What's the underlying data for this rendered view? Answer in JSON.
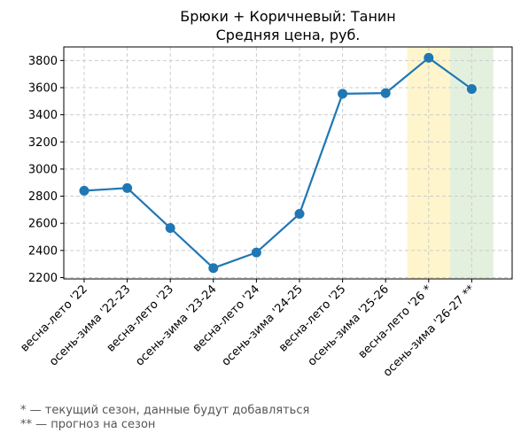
{
  "chart_data": {
    "type": "line",
    "title": "Брюки + Коричневый: Танин",
    "subtitle": "Средняя цена, руб.",
    "categories": [
      "весна-лето '22",
      "осень-зима '22-23",
      "весна-лето '23",
      "осень-зима '23-24",
      "весна-лето '24",
      "осень-зима '24-25",
      "весна-лето '25",
      "осень-зима '25-26",
      "весна-лето '26 *",
      "осень-зима '26-27 **"
    ],
    "values": [
      2840,
      2860,
      2565,
      2270,
      2385,
      2670,
      3555,
      3560,
      3820,
      3590
    ],
    "ylim": [
      2190,
      3900
    ],
    "yticks": [
      2200,
      2400,
      2600,
      2800,
      3000,
      3200,
      3400,
      3600,
      3800
    ],
    "grid": true,
    "highlights": [
      {
        "category_index": 8,
        "color": "#fff5cc"
      },
      {
        "category_index": 9,
        "color": "#e3f0de"
      }
    ],
    "line_color": "#1f77b4"
  },
  "footnotes": {
    "current": "* — текущий сезон, данные будут добавляться",
    "forecast": "** — прогноз на сезон"
  }
}
